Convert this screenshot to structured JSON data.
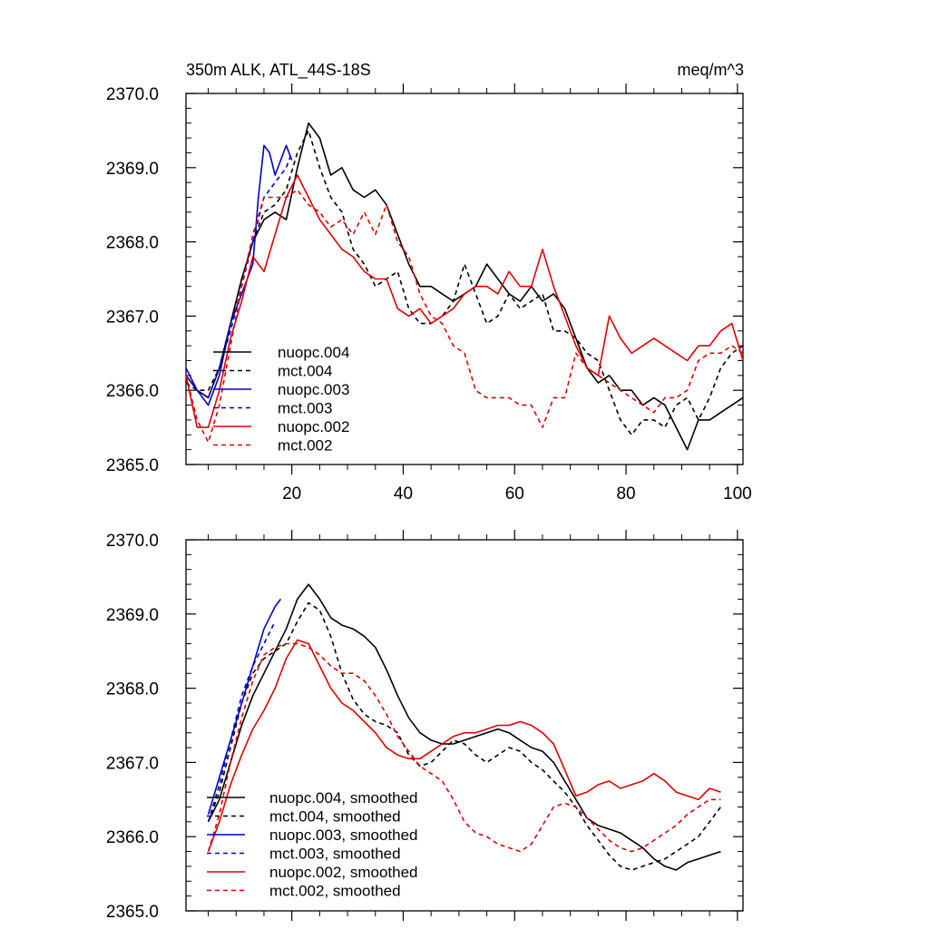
{
  "chart_data": [
    {
      "type": "line",
      "title_left": "350m ALK, ATL_44S-18S",
      "title_right": "meq/m^3",
      "xlim": [
        1,
        101
      ],
      "ylim": [
        2365.0,
        2370.0
      ],
      "x_ticks": [
        20,
        40,
        60,
        80,
        100
      ],
      "x_tick_labels": [
        "20",
        "40",
        "60",
        "80",
        "100"
      ],
      "y_ticks": [
        2365,
        2366,
        2367,
        2368,
        2369,
        2370
      ],
      "y_tick_labels": [
        "2365.0",
        "2366.0",
        "2367.0",
        "2368.0",
        "2369.0",
        "2370.0"
      ],
      "series": [
        {
          "name": "nuopc.004",
          "color": "#000000",
          "dashed": false,
          "x": [
            1,
            3,
            5,
            7,
            9,
            11,
            13,
            15,
            17,
            19,
            21,
            22,
            23,
            25,
            27,
            29,
            31,
            33,
            35,
            37,
            39,
            41,
            43,
            45,
            47,
            49,
            51,
            53,
            55,
            57,
            59,
            61,
            63,
            65,
            67,
            69,
            71,
            73,
            75,
            77,
            79,
            81,
            83,
            85,
            87,
            89,
            91,
            93,
            95,
            97,
            99,
            101
          ],
          "y": [
            2366.2,
            2366.0,
            2365.9,
            2366.3,
            2366.9,
            2367.5,
            2368.0,
            2368.3,
            2368.4,
            2368.3,
            2369.0,
            2369.3,
            2369.6,
            2369.4,
            2368.9,
            2369.0,
            2368.7,
            2368.6,
            2368.7,
            2368.5,
            2368.1,
            2367.7,
            2367.4,
            2367.4,
            2367.3,
            2367.2,
            2367.3,
            2367.4,
            2367.7,
            2367.5,
            2367.3,
            2367.2,
            2367.4,
            2367.2,
            2367.3,
            2367.1,
            2366.7,
            2366.3,
            2366.1,
            2366.2,
            2366.0,
            2366.0,
            2365.8,
            2365.9,
            2365.8,
            2365.5,
            2365.2,
            2365.6,
            2365.6,
            2365.7,
            2365.8,
            2365.9
          ]
        },
        {
          "name": "mct.004",
          "color": "#000000",
          "dashed": true,
          "x": [
            1,
            3,
            5,
            7,
            9,
            11,
            13,
            15,
            17,
            19,
            21,
            23,
            25,
            27,
            29,
            31,
            33,
            35,
            37,
            39,
            41,
            43,
            45,
            47,
            49,
            51,
            53,
            55,
            57,
            59,
            61,
            63,
            65,
            67,
            69,
            71,
            73,
            75,
            77,
            79,
            81,
            83,
            85,
            87,
            89,
            91,
            93,
            95,
            97,
            99,
            101
          ],
          "y": [
            2366.1,
            2366.0,
            2366.0,
            2366.3,
            2366.9,
            2367.5,
            2368.0,
            2368.4,
            2368.5,
            2368.7,
            2369.2,
            2369.5,
            2369.0,
            2368.6,
            2368.4,
            2367.9,
            2367.7,
            2367.4,
            2367.5,
            2367.6,
            2367.1,
            2366.9,
            2366.9,
            2367.0,
            2367.2,
            2367.7,
            2367.3,
            2366.9,
            2367.0,
            2367.3,
            2367.1,
            2367.2,
            2367.3,
            2366.8,
            2366.8,
            2366.7,
            2366.5,
            2366.4,
            2366.0,
            2365.6,
            2365.4,
            2365.6,
            2365.6,
            2365.5,
            2365.8,
            2365.9,
            2365.6,
            2365.9,
            2366.3,
            2366.5,
            2366.6
          ]
        },
        {
          "name": "nuopc.003",
          "color": "#0000cc",
          "dashed": false,
          "x": [
            1,
            3,
            5,
            7,
            9,
            11,
            13,
            14,
            15,
            16,
            17,
            18,
            19,
            20
          ],
          "y": [
            2366.3,
            2366.0,
            2365.8,
            2366.2,
            2366.9,
            2367.3,
            2367.7,
            2368.6,
            2369.3,
            2369.2,
            2368.9,
            2369.1,
            2369.3,
            2369.1
          ]
        },
        {
          "name": "mct.003",
          "color": "#0000cc",
          "dashed": true,
          "x": [
            1,
            3,
            5,
            7,
            9,
            11,
            13,
            15,
            17,
            19,
            20
          ],
          "y": [
            2366.2,
            2366.0,
            2365.9,
            2366.3,
            2366.8,
            2367.4,
            2368.0,
            2368.6,
            2368.8,
            2369.0,
            2369.2
          ]
        },
        {
          "name": "nuopc.002",
          "color": "#e00000",
          "dashed": false,
          "x": [
            1,
            3,
            5,
            7,
            9,
            11,
            13,
            15,
            17,
            19,
            21,
            23,
            25,
            27,
            29,
            31,
            33,
            35,
            37,
            39,
            41,
            43,
            45,
            47,
            49,
            51,
            53,
            55,
            57,
            59,
            61,
            63,
            65,
            67,
            69,
            71,
            73,
            75,
            77,
            79,
            81,
            83,
            85,
            87,
            89,
            91,
            93,
            95,
            97,
            99,
            101
          ],
          "y": [
            2366.2,
            2365.5,
            2365.5,
            2366.0,
            2366.7,
            2367.2,
            2367.8,
            2367.6,
            2368.1,
            2368.6,
            2368.9,
            2368.6,
            2368.3,
            2368.1,
            2367.9,
            2367.8,
            2367.6,
            2367.5,
            2367.5,
            2367.1,
            2367.0,
            2367.1,
            2366.9,
            2367.0,
            2367.1,
            2367.3,
            2367.4,
            2367.4,
            2367.3,
            2367.6,
            2367.4,
            2367.4,
            2367.9,
            2367.4,
            2367.0,
            2366.6,
            2366.3,
            2366.2,
            2367.0,
            2366.7,
            2366.5,
            2366.6,
            2366.7,
            2366.6,
            2366.5,
            2366.4,
            2366.6,
            2366.6,
            2366.8,
            2366.9,
            2366.4
          ]
        },
        {
          "name": "mct.002",
          "color": "#e00000",
          "dashed": true,
          "x": [
            1,
            3,
            5,
            7,
            9,
            11,
            13,
            15,
            17,
            19,
            21,
            23,
            25,
            27,
            29,
            31,
            33,
            35,
            37,
            39,
            41,
            43,
            45,
            47,
            49,
            51,
            53,
            55,
            57,
            59,
            61,
            63,
            65,
            67,
            69,
            71,
            73,
            75,
            77,
            79,
            81,
            83,
            85,
            87,
            89,
            91,
            93,
            95,
            97,
            99,
            101
          ],
          "y": [
            2366.2,
            2365.6,
            2365.3,
            2365.8,
            2366.6,
            2367.4,
            2368.1,
            2368.6,
            2368.6,
            2368.6,
            2368.7,
            2368.5,
            2368.4,
            2368.2,
            2368.3,
            2368.1,
            2368.4,
            2368.1,
            2368.5,
            2368.0,
            2367.8,
            2367.3,
            2367.0,
            2366.9,
            2366.6,
            2366.5,
            2366.0,
            2365.9,
            2365.9,
            2365.9,
            2365.8,
            2365.8,
            2365.5,
            2365.9,
            2365.9,
            2366.5,
            2366.3,
            2366.2,
            2366.1,
            2366.0,
            2365.9,
            2365.8,
            2365.7,
            2365.9,
            2365.9,
            2366.0,
            2366.4,
            2366.5,
            2366.5,
            2366.6,
            2366.5
          ]
        }
      ],
      "legend": {
        "placement": "bottom-left",
        "entries": [
          "nuopc.004",
          "mct.004",
          "nuopc.003",
          "mct.003",
          "nuopc.002",
          "mct.002"
        ]
      }
    },
    {
      "type": "line",
      "title_left": "",
      "title_right": "",
      "xlim": [
        1,
        101
      ],
      "ylim": [
        2365.0,
        2370.0
      ],
      "x_ticks": [
        20,
        40,
        60,
        80,
        100
      ],
      "x_tick_labels": [],
      "y_ticks": [
        2365,
        2366,
        2367,
        2368,
        2369,
        2370
      ],
      "y_tick_labels": [
        "2365.0",
        "2366.0",
        "2367.0",
        "2368.0",
        "2369.0",
        "2370.0"
      ],
      "series": [
        {
          "name": "nuopc.004, smoothed",
          "color": "#000000",
          "dashed": false,
          "x": [
            5,
            7,
            9,
            11,
            13,
            15,
            17,
            19,
            21,
            23,
            25,
            27,
            29,
            31,
            33,
            35,
            37,
            39,
            41,
            43,
            45,
            47,
            49,
            51,
            53,
            55,
            57,
            59,
            61,
            63,
            65,
            67,
            69,
            71,
            73,
            75,
            77,
            79,
            81,
            83,
            85,
            87,
            89,
            91,
            93,
            95,
            97
          ],
          "y": [
            2366.2,
            2366.5,
            2367.0,
            2367.5,
            2367.9,
            2368.2,
            2368.5,
            2368.8,
            2369.2,
            2369.4,
            2369.2,
            2368.95,
            2368.85,
            2368.8,
            2368.7,
            2368.55,
            2368.25,
            2367.9,
            2367.6,
            2367.4,
            2367.3,
            2367.25,
            2367.25,
            2367.3,
            2367.35,
            2367.4,
            2367.45,
            2367.4,
            2367.3,
            2367.2,
            2367.15,
            2367.0,
            2366.75,
            2366.5,
            2366.25,
            2366.15,
            2366.1,
            2366.05,
            2365.95,
            2365.85,
            2365.7,
            2365.6,
            2365.55,
            2365.65,
            2365.7,
            2365.75,
            2365.8
          ]
        },
        {
          "name": "mct.004, smoothed",
          "color": "#000000",
          "dashed": true,
          "x": [
            5,
            7,
            9,
            11,
            13,
            15,
            17,
            19,
            21,
            23,
            25,
            27,
            29,
            31,
            33,
            35,
            37,
            39,
            41,
            43,
            45,
            47,
            49,
            51,
            53,
            55,
            57,
            59,
            61,
            63,
            65,
            67,
            69,
            71,
            73,
            75,
            77,
            79,
            81,
            83,
            85,
            87,
            89,
            91,
            93,
            95,
            97
          ],
          "y": [
            2366.2,
            2366.6,
            2367.2,
            2367.8,
            2368.2,
            2368.4,
            2368.5,
            2368.6,
            2368.9,
            2369.15,
            2369.05,
            2368.7,
            2368.2,
            2367.85,
            2367.65,
            2367.55,
            2367.5,
            2367.4,
            2367.1,
            2366.95,
            2367.0,
            2367.15,
            2367.3,
            2367.25,
            2367.1,
            2367.0,
            2367.1,
            2367.2,
            2367.15,
            2367.0,
            2366.9,
            2366.75,
            2366.6,
            2366.4,
            2366.15,
            2365.95,
            2365.75,
            2365.6,
            2365.55,
            2365.6,
            2365.65,
            2365.7,
            2365.8,
            2365.9,
            2366.0,
            2366.2,
            2366.4
          ]
        },
        {
          "name": "nuopc.003, smoothed",
          "color": "#0000cc",
          "dashed": false,
          "x": [
            5,
            7,
            9,
            11,
            13,
            15,
            17,
            18
          ],
          "y": [
            2366.3,
            2366.8,
            2367.3,
            2367.8,
            2368.3,
            2368.8,
            2369.1,
            2369.2
          ]
        },
        {
          "name": "mct.003, smoothed",
          "color": "#0000cc",
          "dashed": true,
          "x": [
            5,
            7,
            9,
            11,
            13,
            15,
            17
          ],
          "y": [
            2366.2,
            2366.7,
            2367.3,
            2367.9,
            2368.3,
            2368.6,
            2368.9
          ]
        },
        {
          "name": "nuopc.002, smoothed",
          "color": "#e00000",
          "dashed": false,
          "x": [
            5,
            7,
            9,
            11,
            13,
            15,
            17,
            19,
            21,
            23,
            25,
            27,
            29,
            31,
            33,
            35,
            37,
            39,
            41,
            43,
            45,
            47,
            49,
            51,
            53,
            55,
            57,
            59,
            61,
            63,
            65,
            67,
            69,
            71,
            73,
            75,
            77,
            79,
            81,
            83,
            85,
            87,
            89,
            91,
            93,
            95,
            97
          ],
          "y": [
            2365.8,
            2366.2,
            2366.7,
            2367.1,
            2367.45,
            2367.7,
            2368.0,
            2368.4,
            2368.65,
            2368.6,
            2368.3,
            2368.0,
            2367.8,
            2367.7,
            2367.55,
            2367.4,
            2367.2,
            2367.1,
            2367.05,
            2367.05,
            2367.15,
            2367.25,
            2367.35,
            2367.4,
            2367.4,
            2367.45,
            2367.5,
            2367.5,
            2367.55,
            2367.5,
            2367.4,
            2367.25,
            2366.9,
            2366.55,
            2366.6,
            2366.7,
            2366.75,
            2366.65,
            2366.7,
            2366.75,
            2366.85,
            2366.75,
            2366.6,
            2366.55,
            2366.5,
            2366.65,
            2366.6
          ]
        },
        {
          "name": "mct.002, smoothed",
          "color": "#e00000",
          "dashed": true,
          "x": [
            5,
            7,
            9,
            11,
            13,
            15,
            17,
            19,
            21,
            23,
            25,
            27,
            29,
            31,
            33,
            35,
            37,
            39,
            41,
            43,
            45,
            47,
            49,
            51,
            53,
            55,
            57,
            59,
            61,
            63,
            65,
            67,
            69,
            71,
            73,
            75,
            77,
            79,
            81,
            83,
            85,
            87,
            89,
            91,
            93,
            95,
            97
          ],
          "y": [
            2365.8,
            2366.3,
            2367.0,
            2367.6,
            2368.1,
            2368.45,
            2368.55,
            2368.6,
            2368.6,
            2368.55,
            2368.45,
            2368.3,
            2368.2,
            2368.2,
            2368.1,
            2367.9,
            2367.65,
            2367.35,
            2367.15,
            2366.95,
            2366.85,
            2366.75,
            2366.5,
            2366.2,
            2366.05,
            2366.0,
            2365.9,
            2365.85,
            2365.8,
            2365.9,
            2366.15,
            2366.4,
            2366.45,
            2366.4,
            2366.25,
            2366.1,
            2365.95,
            2365.85,
            2365.8,
            2365.85,
            2365.95,
            2366.05,
            2366.15,
            2366.3,
            2366.4,
            2366.5,
            2366.5
          ]
        }
      ],
      "legend": {
        "placement": "bottom-left",
        "entries": [
          "nuopc.004, smoothed",
          "mct.004, smoothed",
          "nuopc.003, smoothed",
          "mct.003, smoothed",
          "nuopc.002, smoothed",
          "mct.002, smoothed"
        ]
      }
    }
  ]
}
